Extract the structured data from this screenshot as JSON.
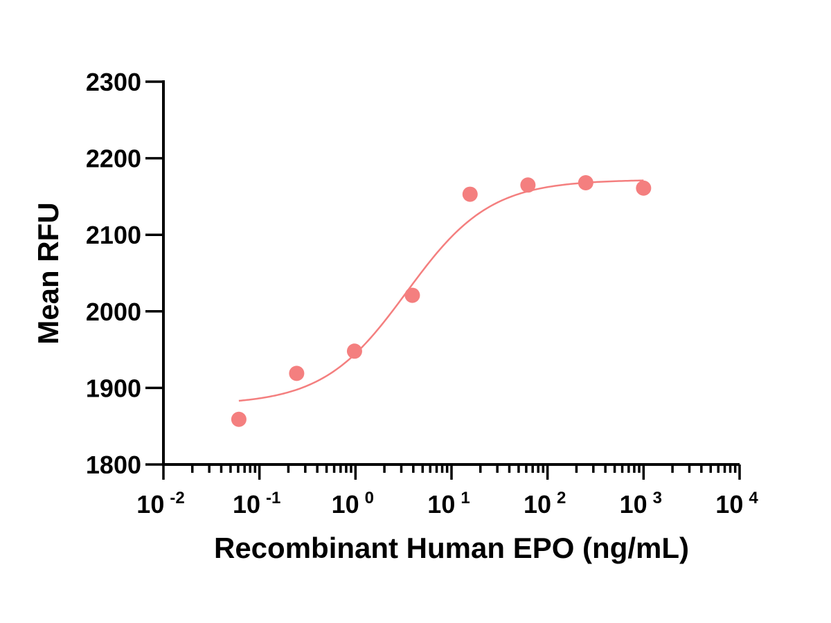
{
  "chart_data": {
    "type": "scatter",
    "title": "",
    "xlabel": "Recombinant Human EPO (ng/mL)",
    "ylabel": "Mean RFU",
    "x_scale": "log",
    "xlim": [
      0.01,
      10000
    ],
    "ylim": [
      1800,
      2300
    ],
    "y_ticks": [
      "1800",
      "1900",
      "2000",
      "2100",
      "2200",
      "2300"
    ],
    "x_ticks": [
      {
        "base": "10",
        "exp": "-2"
      },
      {
        "base": "10",
        "exp": "-1"
      },
      {
        "base": "10",
        "exp": "0"
      },
      {
        "base": "10",
        "exp": "1"
      },
      {
        "base": "10",
        "exp": "2"
      },
      {
        "base": "10",
        "exp": "3"
      },
      {
        "base": "10",
        "exp": "4"
      }
    ],
    "grid": false,
    "color": "#f47f7f",
    "series": [
      {
        "points": [
          {
            "x": 0.061,
            "y": 1859
          },
          {
            "x": 0.244,
            "y": 1919
          },
          {
            "x": 0.977,
            "y": 1948
          },
          {
            "x": 3.91,
            "y": 2021
          },
          {
            "x": 15.6,
            "y": 2153
          },
          {
            "x": 62.5,
            "y": 2165
          },
          {
            "x": 250,
            "y": 2168
          },
          {
            "x": 1000,
            "y": 2161
          }
        ],
        "fit": {
          "model": "4PL",
          "bottom": 1878,
          "top": 2172,
          "ec50": 3.4,
          "hill": 1.0,
          "x_range": [
            0.061,
            1000
          ]
        }
      }
    ]
  }
}
